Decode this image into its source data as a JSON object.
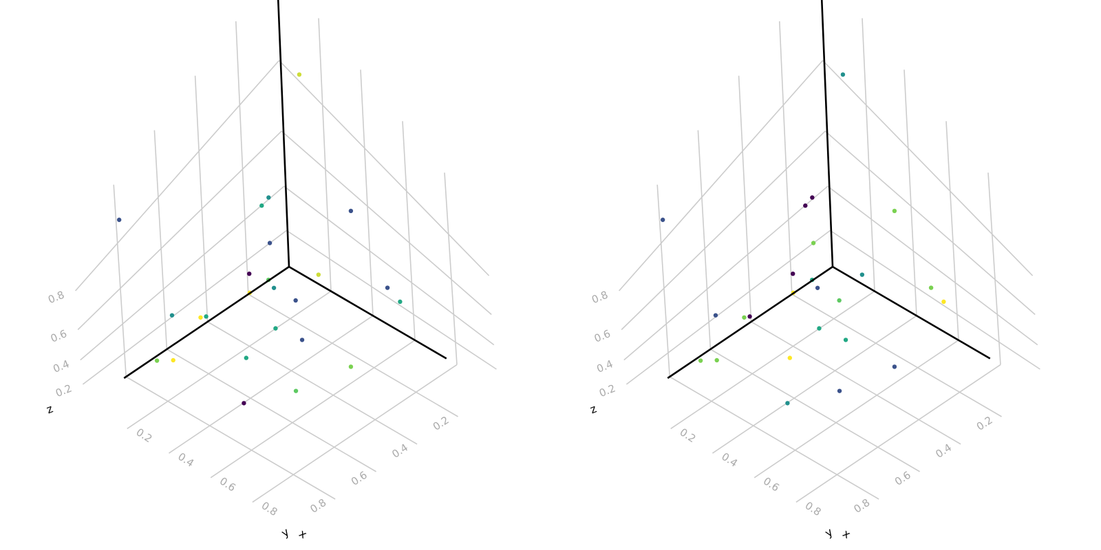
{
  "chart_data": [
    {
      "type": "scatter",
      "projection": "3d",
      "xlabel": "x",
      "ylabel": "y",
      "zlabel": "z",
      "xlim": [
        0,
        1
      ],
      "ylim": [
        0,
        1
      ],
      "zlim": [
        0,
        1
      ],
      "ticks": [
        0.2,
        0.4,
        0.6,
        0.8
      ],
      "tick_labels": [
        "0.2",
        "0.4",
        "0.6",
        "0.8"
      ],
      "grid": true,
      "points": [
        {
          "x": 0.01,
          "y": 0.79,
          "z": 0.89,
          "color": "#3b528b"
        },
        {
          "x": 0.27,
          "y": 0.33,
          "z": 0.79,
          "color": "#21908d"
        },
        {
          "x": 0.67,
          "y": 0.17,
          "z": 0.6,
          "color": "#3b528b"
        },
        {
          "x": 0.33,
          "y": 0.42,
          "z": 0.88,
          "color": "#22a884"
        },
        {
          "x": 0.48,
          "y": 0.52,
          "z": 0.78,
          "color": "#21908d"
        },
        {
          "x": 0.37,
          "y": 0.74,
          "z": 0.77,
          "color": "#22a884"
        },
        {
          "x": 0.33,
          "y": 0.73,
          "z": 0.71,
          "color": "#fde725"
        },
        {
          "x": 0.37,
          "y": 0.53,
          "z": 0.75,
          "color": "#440154"
        },
        {
          "x": 0.19,
          "y": 0.26,
          "z": 0.49,
          "color": "#3b528b"
        },
        {
          "x": 0.23,
          "y": 0.08,
          "z": 0.2,
          "color": "#cddc39"
        },
        {
          "x": 0.41,
          "y": 0.36,
          "z": 0.48,
          "color": "#3b528b"
        },
        {
          "x": 0.04,
          "y": 0.23,
          "z": 0.07,
          "color": "#fde725"
        },
        {
          "x": 0.7,
          "y": 0.65,
          "z": 0.58,
          "color": "#5ec962"
        },
        {
          "x": 0.3,
          "y": 0.51,
          "z": 0.14,
          "color": "#22a884"
        },
        {
          "x": 0.4,
          "y": 0.47,
          "z": 0.69,
          "color": "#5ec962"
        },
        {
          "x": 0.13,
          "y": 0.68,
          "z": 0.46,
          "color": "#21908d"
        },
        {
          "x": 0.22,
          "y": 0.29,
          "z": 0.04,
          "color": "#22a884"
        },
        {
          "x": 0.1,
          "y": 0.74,
          "z": 0.18,
          "color": "#7ad151"
        },
        {
          "x": 0.42,
          "y": 0.65,
          "z": 0.05,
          "color": "#440154"
        },
        {
          "x": 0.17,
          "y": 0.07,
          "z": 0.9,
          "color": "#cddc39"
        },
        {
          "x": 0.4,
          "y": 0.07,
          "z": 0.63,
          "color": "#3b528b"
        },
        {
          "x": 0.63,
          "y": 0.08,
          "z": 0.39,
          "color": "#22a884"
        },
        {
          "x": 0.36,
          "y": 0.3,
          "z": 0.1,
          "color": "#3b528b"
        },
        {
          "x": 0.72,
          "y": 0.41,
          "z": 0.44,
          "color": "#7ad151"
        },
        {
          "x": 0.24,
          "y": 0.79,
          "z": 0.41,
          "color": "#fde725"
        }
      ]
    },
    {
      "type": "scatter",
      "projection": "3d",
      "xlabel": "x",
      "ylabel": "y",
      "zlabel": "z",
      "xlim": [
        0,
        1
      ],
      "ylim": [
        0,
        1
      ],
      "zlim": [
        0,
        1
      ],
      "ticks": [
        0.2,
        0.4,
        0.6,
        0.8
      ],
      "tick_labels": [
        "0.2",
        "0.4",
        "0.6",
        "0.8"
      ],
      "grid": true,
      "points": [
        {
          "x": 0.01,
          "y": 0.79,
          "z": 0.89,
          "color": "#3b528b"
        },
        {
          "x": 0.27,
          "y": 0.33,
          "z": 0.79,
          "color": "#440154"
        },
        {
          "x": 0.67,
          "y": 0.17,
          "z": 0.6,
          "color": "#7ad151"
        },
        {
          "x": 0.33,
          "y": 0.42,
          "z": 0.88,
          "color": "#440154"
        },
        {
          "x": 0.48,
          "y": 0.52,
          "z": 0.78,
          "color": "#3b528b"
        },
        {
          "x": 0.37,
          "y": 0.74,
          "z": 0.77,
          "color": "#440154"
        },
        {
          "x": 0.33,
          "y": 0.73,
          "z": 0.71,
          "color": "#7ad151"
        },
        {
          "x": 0.37,
          "y": 0.53,
          "z": 0.75,
          "color": "#440154"
        },
        {
          "x": 0.19,
          "y": 0.26,
          "z": 0.49,
          "color": "#7ad151"
        },
        {
          "x": 0.23,
          "y": 0.08,
          "z": 0.2,
          "color": "#21908d"
        },
        {
          "x": 0.41,
          "y": 0.36,
          "z": 0.48,
          "color": "#5ec962"
        },
        {
          "x": 0.04,
          "y": 0.23,
          "z": 0.07,
          "color": "#fde725"
        },
        {
          "x": 0.7,
          "y": 0.65,
          "z": 0.58,
          "color": "#3b528b"
        },
        {
          "x": 0.3,
          "y": 0.51,
          "z": 0.14,
          "color": "#fde725"
        },
        {
          "x": 0.4,
          "y": 0.47,
          "z": 0.69,
          "color": "#22a884"
        },
        {
          "x": 0.13,
          "y": 0.68,
          "z": 0.46,
          "color": "#3b528b"
        },
        {
          "x": 0.22,
          "y": 0.29,
          "z": 0.04,
          "color": "#22a884"
        },
        {
          "x": 0.1,
          "y": 0.74,
          "z": 0.18,
          "color": "#7ad151"
        },
        {
          "x": 0.42,
          "y": 0.65,
          "z": 0.05,
          "color": "#21908d"
        },
        {
          "x": 0.17,
          "y": 0.07,
          "z": 0.9,
          "color": "#21908d"
        },
        {
          "x": 0.4,
          "y": 0.07,
          "z": 0.63,
          "color": "#7ad151"
        },
        {
          "x": 0.63,
          "y": 0.08,
          "z": 0.39,
          "color": "#fde725"
        },
        {
          "x": 0.36,
          "y": 0.3,
          "z": 0.1,
          "color": "#22a884"
        },
        {
          "x": 0.72,
          "y": 0.41,
          "z": 0.44,
          "color": "#3b528b"
        },
        {
          "x": 0.24,
          "y": 0.79,
          "z": 0.41,
          "color": "#7ad151"
        }
      ]
    }
  ]
}
